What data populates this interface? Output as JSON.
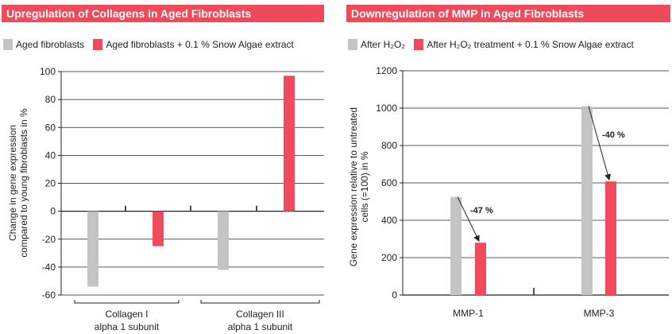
{
  "colors": {
    "gray": "#c4c4c4",
    "red": "#ef4b5d",
    "title_bg": "#ee4a5c"
  },
  "chart_data": [
    {
      "type": "bar",
      "title": "Upregulation of Collagens in Aged Fibroblasts",
      "ylabel_lines": [
        "Change in gene expression",
        "compared to young fibroblasts in %"
      ],
      "ylim": [
        -60,
        100
      ],
      "yticks": [
        "100",
        "80",
        "60",
        "40",
        "20",
        "0",
        "-20",
        "-40",
        "-60"
      ],
      "grid": true,
      "legend_position": "top-left",
      "categories": [
        {
          "lines": [
            "Collagen I",
            "alpha 1 subunit"
          ]
        },
        {
          "lines": [
            "Collagen III",
            "alpha 1 subunit"
          ]
        }
      ],
      "series": [
        {
          "name": "Aged fibroblasts",
          "color": "#c4c4c4",
          "values": [
            -54,
            -42
          ]
        },
        {
          "name": "Aged fibroblasts + 0.1 % Snow Algae extract",
          "color": "#ef4b5d",
          "values": [
            -25,
            97
          ]
        }
      ]
    },
    {
      "type": "bar",
      "title": "Downregulation of MMP in Aged Fibroblasts",
      "ylabel_lines": [
        "Gene expression relative to untreated",
        "cells (=100) in %"
      ],
      "ylim": [
        0,
        1200
      ],
      "yticks": [
        "1200",
        "1000",
        "800",
        "600",
        "400",
        "200",
        "0"
      ],
      "grid": true,
      "legend_position": "top-left",
      "categories": [
        {
          "lines": [
            "MMP-1"
          ]
        },
        {
          "lines": [
            "MMP-3"
          ]
        }
      ],
      "series": [
        {
          "name": "After H₂O₂",
          "color": "#c4c4c4",
          "values": [
            525,
            1010
          ]
        },
        {
          "name": "After H₂O₂ treatment + 0.1 % Snow Algae extract",
          "color": "#ef4b5d",
          "values": [
            280,
            608
          ]
        }
      ],
      "annotations": [
        "-47 %",
        "-40 %"
      ]
    }
  ]
}
